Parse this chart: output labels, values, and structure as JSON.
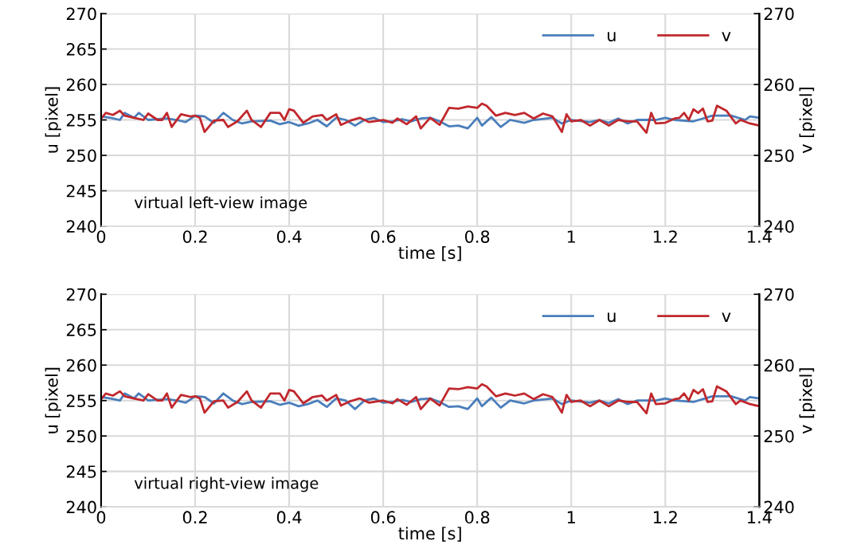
{
  "chart_data": [
    {
      "type": "line",
      "xlabel": "time [s]",
      "ylabel": "u [pixel]",
      "y2label": "v [pixel]",
      "annotations": [
        "virtual left-view image"
      ],
      "legend": "top right",
      "grid": true,
      "xlim": [
        0,
        1.4
      ],
      "xticks": [
        0,
        0.2,
        0.4,
        0.6,
        0.8,
        1,
        1.2,
        1.4
      ],
      "ylim": [
        240,
        270
      ],
      "yticks": [
        240,
        245,
        250,
        255,
        260,
        265,
        270
      ],
      "y2lim": [
        240,
        270
      ],
      "y2ticks": [
        240,
        250,
        260,
        270
      ],
      "series": [
        {
          "name": "u",
          "color": "#4a7ebb",
          "x": [
            0,
            0.02,
            0.04,
            0.05,
            0.07,
            0.08,
            0.1,
            0.14,
            0.16,
            0.18,
            0.2,
            0.22,
            0.24,
            0.26,
            0.28,
            0.3,
            0.32,
            0.36,
            0.38,
            0.4,
            0.42,
            0.44,
            0.46,
            0.48,
            0.5,
            0.52,
            0.54,
            0.56,
            0.58,
            0.6,
            0.62,
            0.64,
            0.66,
            0.68,
            0.7,
            0.72,
            0.74,
            0.76,
            0.78,
            0.8,
            0.81,
            0.83,
            0.85,
            0.87,
            0.9,
            0.92,
            0.96,
            0.98,
            1.0,
            1.04,
            1.06,
            1.08,
            1.1,
            1.12,
            1.14,
            1.18,
            1.2,
            1.22,
            1.26,
            1.28,
            1.3,
            1.34,
            1.37,
            1.38,
            1.4
          ],
          "values": [
            255.5,
            255.3,
            255.0,
            256.0,
            255.3,
            256.0,
            255.0,
            255.2,
            255.0,
            254.7,
            255.6,
            255.5,
            254.6,
            256.0,
            255.0,
            254.5,
            254.8,
            254.9,
            254.4,
            254.7,
            254.2,
            254.5,
            255.0,
            254.1,
            255.3,
            255.0,
            254.2,
            255.0,
            255.3,
            254.7,
            254.8,
            255.1,
            254.8,
            255.2,
            255.3,
            254.8,
            254.1,
            254.2,
            253.8,
            255.3,
            254.2,
            255.4,
            254.0,
            255.0,
            254.6,
            255.0,
            255.3,
            254.5,
            255.0,
            254.7,
            255.0,
            254.6,
            255.2,
            254.5,
            255.0,
            255.0,
            255.3,
            255.0,
            254.8,
            255.2,
            255.6,
            255.6,
            255.0,
            255.5,
            255.3
          ]
        },
        {
          "name": "v",
          "color": "#c0282d",
          "axis": "y2",
          "x": [
            0,
            0.01,
            0.025,
            0.04,
            0.05,
            0.07,
            0.09,
            0.1,
            0.12,
            0.13,
            0.14,
            0.15,
            0.17,
            0.19,
            0.2,
            0.21,
            0.22,
            0.24,
            0.26,
            0.27,
            0.29,
            0.31,
            0.32,
            0.34,
            0.36,
            0.38,
            0.39,
            0.4,
            0.41,
            0.43,
            0.45,
            0.47,
            0.48,
            0.5,
            0.51,
            0.53,
            0.55,
            0.57,
            0.6,
            0.62,
            0.63,
            0.65,
            0.67,
            0.68,
            0.7,
            0.72,
            0.74,
            0.76,
            0.78,
            0.8,
            0.81,
            0.82,
            0.84,
            0.86,
            0.88,
            0.9,
            0.92,
            0.94,
            0.96,
            0.98,
            0.99,
            1.0,
            1.02,
            1.04,
            1.06,
            1.08,
            1.1,
            1.12,
            1.14,
            1.16,
            1.17,
            1.18,
            1.2,
            1.22,
            1.23,
            1.24,
            1.25,
            1.26,
            1.27,
            1.28,
            1.29,
            1.3,
            1.31,
            1.33,
            1.35,
            1.36,
            1.38,
            1.4
          ],
          "values": [
            255.2,
            256.0,
            255.7,
            256.3,
            255.6,
            255.3,
            255.0,
            255.9,
            255.0,
            255.0,
            256.0,
            254.0,
            255.8,
            255.5,
            255.6,
            255.3,
            253.3,
            254.9,
            255.0,
            254.0,
            254.8,
            256.3,
            255.0,
            254.0,
            256.0,
            256.0,
            255.0,
            256.5,
            256.3,
            254.6,
            255.5,
            255.7,
            255.0,
            255.8,
            254.3,
            254.9,
            255.3,
            254.7,
            255.0,
            254.6,
            255.2,
            254.4,
            255.5,
            253.8,
            255.3,
            254.3,
            256.7,
            256.6,
            256.9,
            256.7,
            257.3,
            257.0,
            255.6,
            256.0,
            255.7,
            256.0,
            255.2,
            255.9,
            255.5,
            253.3,
            255.8,
            254.8,
            255.0,
            254.2,
            255.0,
            254.2,
            255.0,
            254.8,
            254.8,
            253.2,
            256.0,
            254.5,
            254.6,
            255.2,
            255.3,
            256.0,
            255.0,
            256.5,
            256.0,
            256.6,
            254.8,
            254.9,
            257.0,
            256.3,
            254.5,
            255.0,
            254.5,
            254.2
          ]
        }
      ]
    },
    {
      "type": "line",
      "xlabel": "time [s]",
      "ylabel": "u [pixel]",
      "y2label": "v [pixel]",
      "annotations": [
        "virtual right-view image"
      ],
      "legend": "top right",
      "grid": true,
      "xlim": [
        0,
        1.4
      ],
      "xticks": [
        0,
        0.2,
        0.4,
        0.6,
        0.8,
        1,
        1.2,
        1.4
      ],
      "ylim": [
        240,
        270
      ],
      "yticks": [
        240,
        245,
        250,
        255,
        260,
        265,
        270
      ],
      "y2lim": [
        240,
        270
      ],
      "y2ticks": [
        240,
        250,
        260,
        270
      ],
      "series": [
        {
          "name": "u",
          "color": "#4a7ebb",
          "x": [
            0,
            0.02,
            0.04,
            0.05,
            0.07,
            0.08,
            0.1,
            0.14,
            0.16,
            0.18,
            0.2,
            0.22,
            0.24,
            0.26,
            0.28,
            0.3,
            0.32,
            0.36,
            0.38,
            0.4,
            0.42,
            0.44,
            0.46,
            0.48,
            0.5,
            0.52,
            0.54,
            0.56,
            0.58,
            0.6,
            0.62,
            0.64,
            0.66,
            0.68,
            0.7,
            0.72,
            0.74,
            0.76,
            0.78,
            0.8,
            0.81,
            0.83,
            0.85,
            0.87,
            0.9,
            0.92,
            0.96,
            0.98,
            1.0,
            1.04,
            1.06,
            1.08,
            1.1,
            1.12,
            1.14,
            1.18,
            1.2,
            1.22,
            1.26,
            1.28,
            1.3,
            1.34,
            1.37,
            1.38,
            1.4
          ],
          "values": [
            255.5,
            255.3,
            255.0,
            256.0,
            255.3,
            256.0,
            255.0,
            255.2,
            255.0,
            254.7,
            255.6,
            255.5,
            254.6,
            256.0,
            255.0,
            254.5,
            254.8,
            254.9,
            254.4,
            254.7,
            254.2,
            254.5,
            255.0,
            254.1,
            255.3,
            255.0,
            253.8,
            255.0,
            255.3,
            254.7,
            254.8,
            255.1,
            254.8,
            255.2,
            255.3,
            254.8,
            254.1,
            254.2,
            253.8,
            255.3,
            254.2,
            255.4,
            254.0,
            255.0,
            254.6,
            255.0,
            255.3,
            254.5,
            255.0,
            254.7,
            255.0,
            254.6,
            255.2,
            254.5,
            255.0,
            255.0,
            255.3,
            255.0,
            254.8,
            255.2,
            255.6,
            255.6,
            255.0,
            255.5,
            255.3
          ]
        },
        {
          "name": "v",
          "color": "#c0282d",
          "axis": "y2",
          "x": [
            0,
            0.01,
            0.025,
            0.04,
            0.05,
            0.07,
            0.09,
            0.1,
            0.12,
            0.13,
            0.14,
            0.15,
            0.17,
            0.19,
            0.2,
            0.21,
            0.22,
            0.24,
            0.26,
            0.27,
            0.29,
            0.31,
            0.32,
            0.34,
            0.36,
            0.38,
            0.39,
            0.4,
            0.41,
            0.43,
            0.45,
            0.47,
            0.48,
            0.5,
            0.51,
            0.53,
            0.55,
            0.57,
            0.6,
            0.62,
            0.63,
            0.65,
            0.67,
            0.68,
            0.7,
            0.72,
            0.74,
            0.76,
            0.78,
            0.8,
            0.81,
            0.82,
            0.84,
            0.86,
            0.88,
            0.9,
            0.92,
            0.94,
            0.96,
            0.98,
            0.99,
            1.0,
            1.02,
            1.04,
            1.06,
            1.08,
            1.1,
            1.12,
            1.14,
            1.16,
            1.17,
            1.18,
            1.2,
            1.22,
            1.23,
            1.24,
            1.25,
            1.26,
            1.27,
            1.28,
            1.29,
            1.3,
            1.31,
            1.33,
            1.35,
            1.36,
            1.38,
            1.4
          ],
          "values": [
            255.2,
            256.0,
            255.7,
            256.3,
            255.6,
            255.3,
            255.0,
            255.9,
            255.0,
            255.0,
            256.0,
            254.0,
            255.8,
            255.5,
            255.6,
            255.3,
            253.3,
            254.9,
            255.0,
            254.0,
            254.8,
            256.3,
            255.0,
            254.0,
            256.0,
            256.0,
            255.0,
            256.5,
            256.3,
            254.6,
            255.5,
            255.7,
            255.0,
            255.8,
            254.3,
            254.9,
            255.3,
            254.7,
            255.0,
            254.6,
            255.2,
            254.4,
            255.5,
            253.8,
            255.3,
            254.3,
            256.7,
            256.6,
            256.9,
            256.7,
            257.3,
            257.0,
            255.6,
            256.0,
            255.7,
            256.0,
            255.2,
            255.9,
            255.5,
            253.3,
            255.8,
            254.8,
            255.0,
            254.2,
            255.0,
            254.2,
            255.0,
            254.8,
            254.8,
            253.2,
            256.0,
            254.5,
            254.6,
            255.2,
            255.3,
            256.0,
            255.0,
            256.5,
            256.0,
            256.6,
            254.8,
            254.9,
            257.0,
            256.3,
            254.5,
            255.0,
            254.5,
            254.2
          ]
        }
      ]
    }
  ]
}
